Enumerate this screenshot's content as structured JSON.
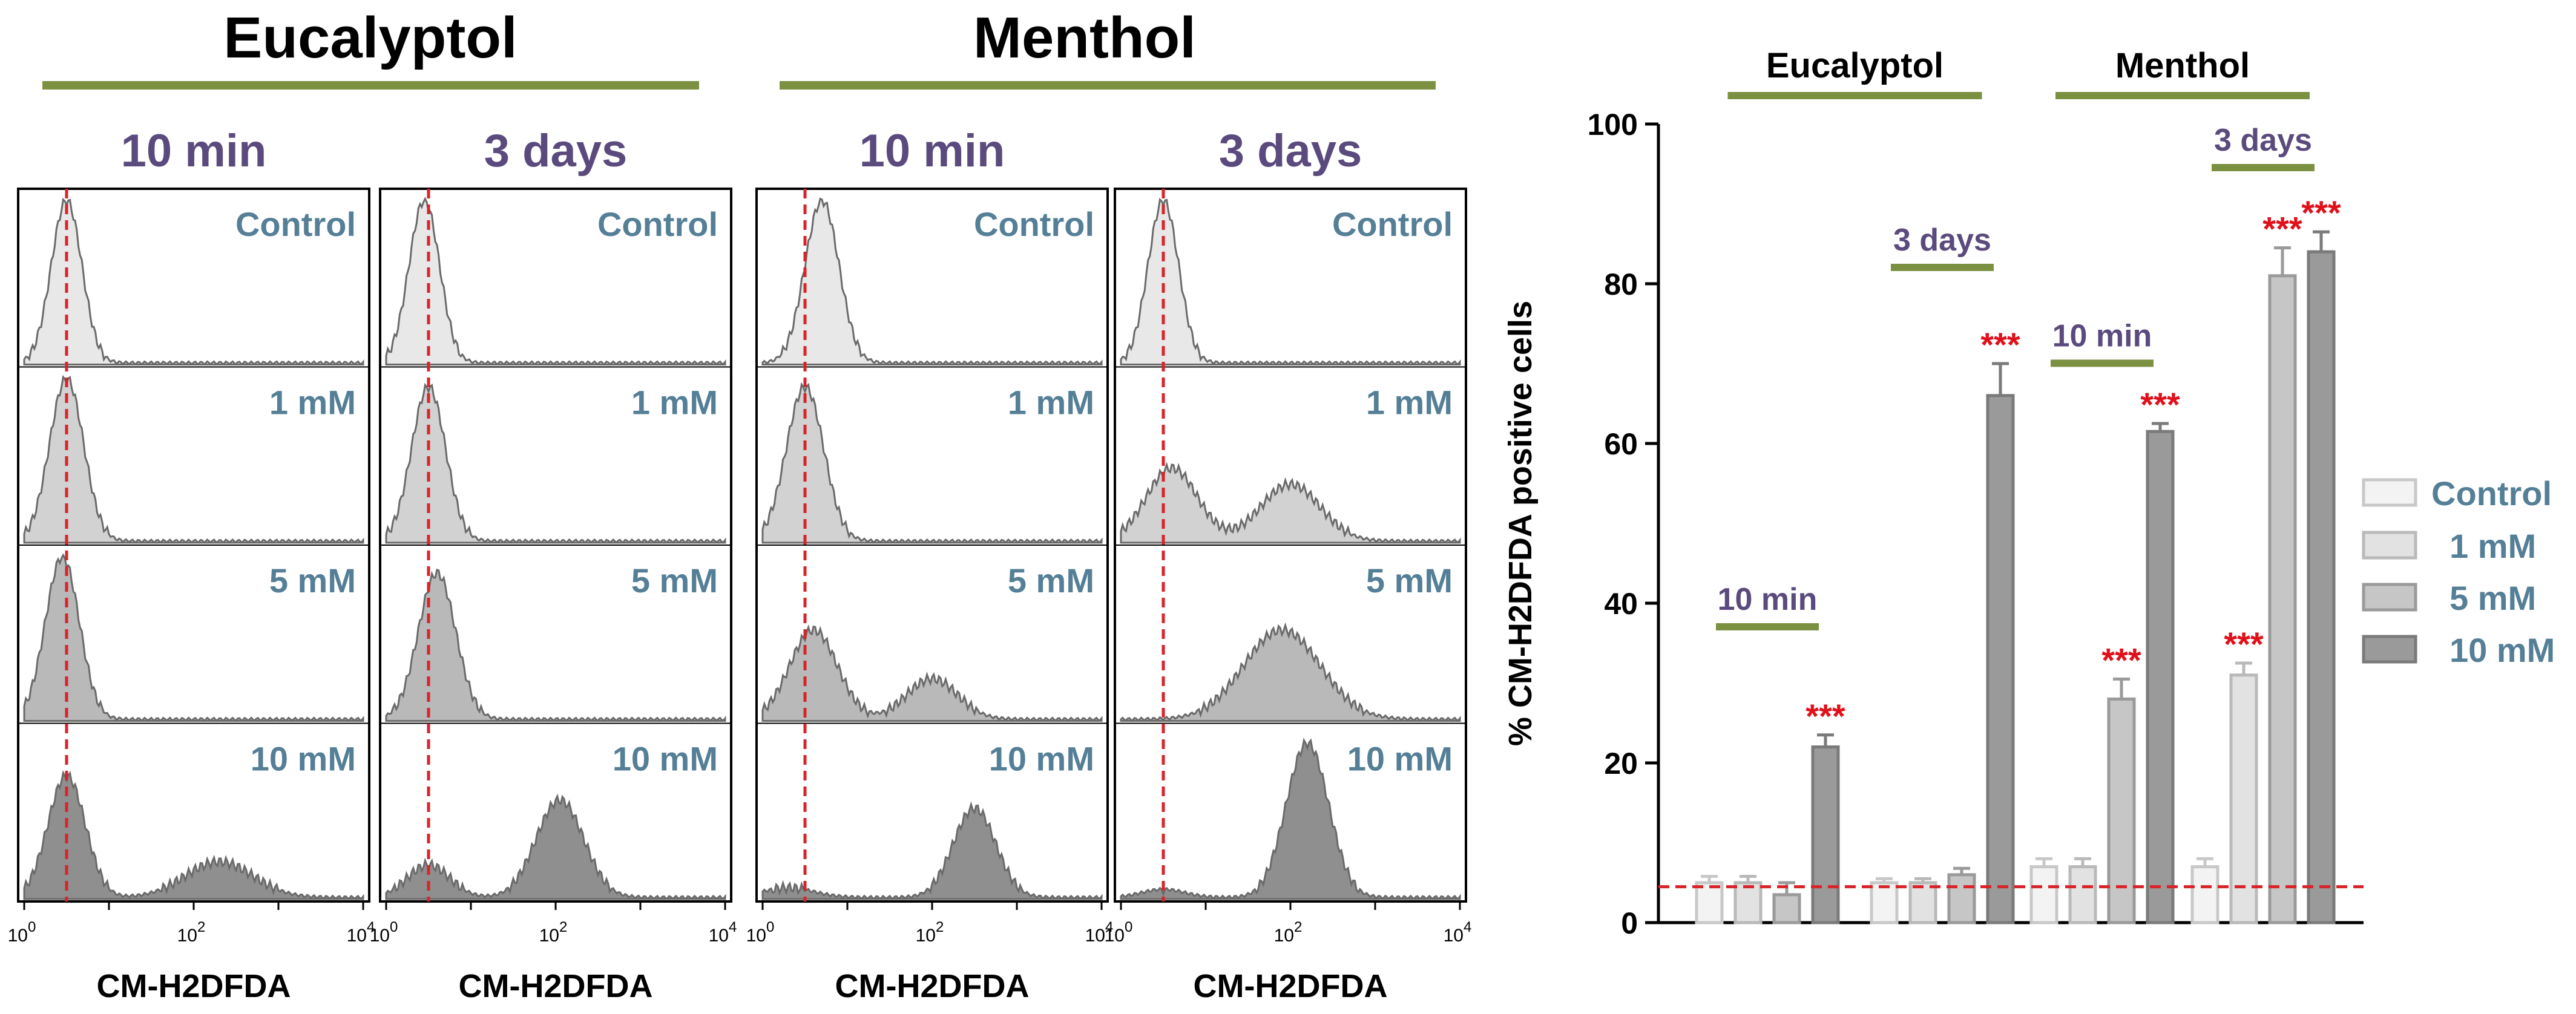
{
  "colors": {
    "group_bar": "#7b9040",
    "time_text": "#5b4a7d",
    "dose_text": "#547f96",
    "sig_text": "#e0101a",
    "cutoff_line": "#d8232a",
    "hist_fill": [
      "#e8e8e8",
      "#d2d2d2",
      "#b9b9b9",
      "#8f8f8f"
    ],
    "bar_fill": [
      "#f3f3f3",
      "#e2e2e2",
      "#c6c6c6",
      "#9a9a9a"
    ],
    "bar_edge": [
      "#c8c8c8",
      "#b9b9b9",
      "#9a9a9a",
      "#7a7a7a"
    ],
    "axis": "#000000"
  },
  "histograms": {
    "groups": [
      "Eucalyptol",
      "Menthol"
    ],
    "times": [
      "10 min",
      "3 days"
    ],
    "doses": [
      "Control",
      "1 mM",
      "5 mM",
      "10 mM"
    ],
    "xlabel": "CM-H2DFDA",
    "tick_base": "10",
    "tick_exps": [
      "0",
      "2",
      "4"
    ],
    "cutoff_log": 0.5
  },
  "chart_data": {
    "type": "bar",
    "ylabel": "% CM-H2DFDA positive cells",
    "ylim": [
      0,
      100
    ],
    "yticks": [
      "0",
      "20",
      "40",
      "60",
      "80",
      "100"
    ],
    "threshold": 4.5,
    "legend_position": "right",
    "series": [
      {
        "name": "Control"
      },
      {
        "name": "1 mM"
      },
      {
        "name": "5 mM"
      },
      {
        "name": "10 mM"
      }
    ],
    "groups": [
      {
        "compound": "Eucalyptol",
        "time": "10 min",
        "values": [
          5,
          5,
          3.5,
          22
        ],
        "errors": [
          0.8,
          0.8,
          1.5,
          1.5
        ],
        "sig": [
          "",
          "",
          "",
          "***"
        ]
      },
      {
        "compound": "Eucalyptol",
        "time": "3 days",
        "values": [
          5,
          5,
          6,
          66
        ],
        "errors": [
          0.5,
          0.5,
          0.8,
          4
        ],
        "sig": [
          "",
          "",
          "",
          "***"
        ]
      },
      {
        "compound": "Menthol",
        "time": "10 min",
        "values": [
          7,
          7,
          28,
          61.5
        ],
        "errors": [
          1,
          1,
          2.5,
          1
        ],
        "sig": [
          "",
          "",
          "***",
          "***"
        ]
      },
      {
        "compound": "Menthol",
        "time": "3 days",
        "values": [
          7,
          31,
          81,
          84
        ],
        "errors": [
          1,
          1.5,
          3.5,
          2.5
        ],
        "sig": [
          "",
          "***",
          "***",
          "***"
        ]
      }
    ]
  }
}
